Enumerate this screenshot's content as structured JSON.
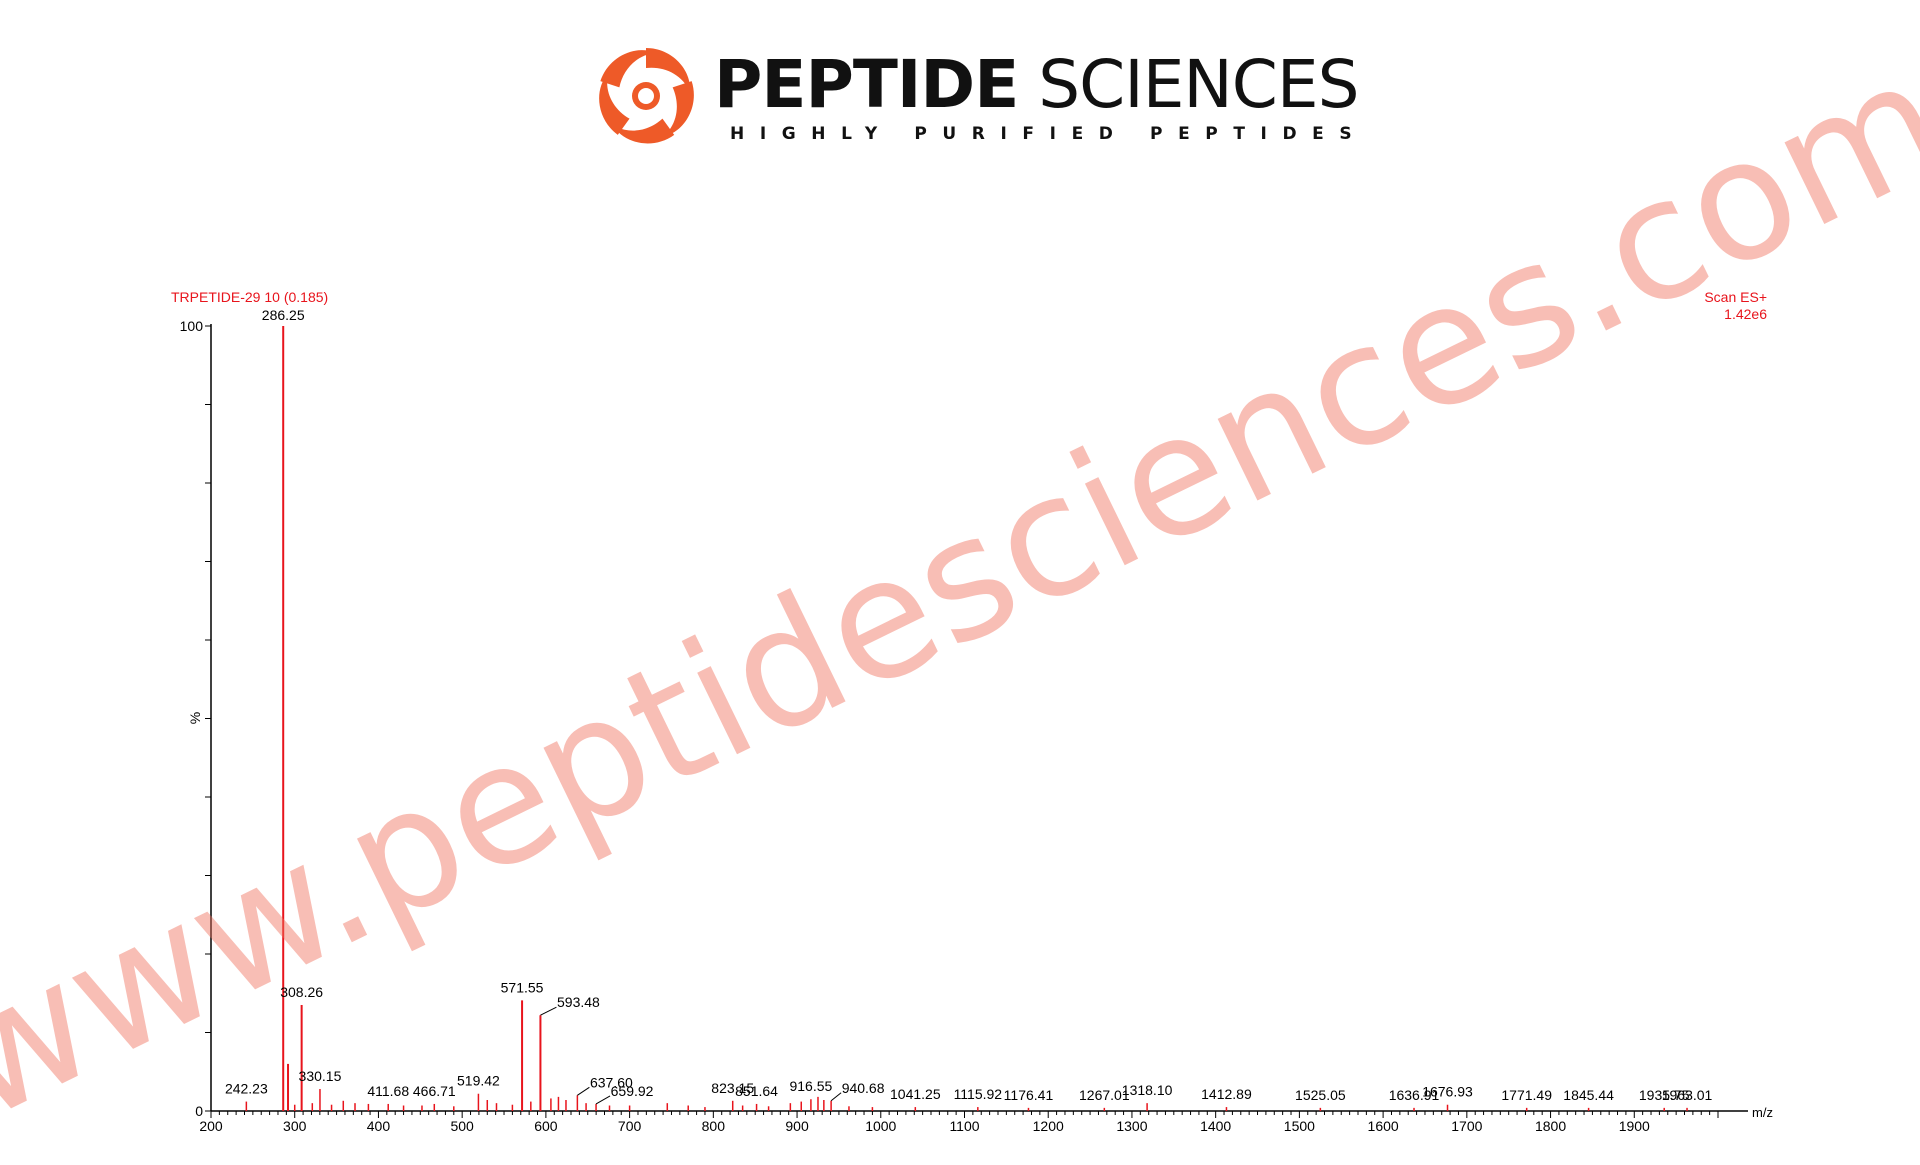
{
  "brand": {
    "name_bold": "PEPTIDE",
    "name_light": "SCIENCES",
    "tagline": "HIGHLY PURIFIED PEPTIDES",
    "logo_color": "#ee5a28"
  },
  "watermark": "www.peptidesciences.com",
  "chart_data": {
    "type": "bar",
    "title": "TRPETIDE-29 10 (0.185)",
    "scan_label": "Scan ES+",
    "intensity_label": "1.42e6",
    "ylabel": "%",
    "xlabel": "m/z",
    "xlim": [
      200,
      2000
    ],
    "ylim": [
      0,
      100
    ],
    "xticks": [
      200,
      300,
      400,
      500,
      600,
      700,
      800,
      900,
      1000,
      1100,
      1200,
      1300,
      1400,
      1500,
      1600,
      1700,
      1800,
      1900
    ],
    "yticks": [
      0,
      100
    ],
    "series_color": "#e8141c",
    "peaks": [
      {
        "mz": 242.23,
        "intensity": 1.2,
        "label": "242.23"
      },
      {
        "mz": 286.25,
        "intensity": 100,
        "label": "286.25"
      },
      {
        "mz": 308.26,
        "intensity": 13.5,
        "label": "308.26"
      },
      {
        "mz": 330.15,
        "intensity": 2.8,
        "label": "330.15"
      },
      {
        "mz": 411.68,
        "intensity": 0.9,
        "label": "411.68"
      },
      {
        "mz": 466.71,
        "intensity": 0.9,
        "label": "466.71"
      },
      {
        "mz": 519.42,
        "intensity": 2.2,
        "label": "519.42"
      },
      {
        "mz": 571.55,
        "intensity": 14.1,
        "label": "571.55"
      },
      {
        "mz": 593.48,
        "intensity": 12.2,
        "label": "593.48"
      },
      {
        "mz": 637.6,
        "intensity": 2.0,
        "label": "637.60"
      },
      {
        "mz": 659.92,
        "intensity": 0.9,
        "label": "659.92"
      },
      {
        "mz": 823.15,
        "intensity": 1.3,
        "label": "823.15"
      },
      {
        "mz": 851.64,
        "intensity": 0.9,
        "label": "851.64"
      },
      {
        "mz": 916.55,
        "intensity": 1.5,
        "label": "916.55"
      },
      {
        "mz": 940.68,
        "intensity": 1.3,
        "label": "940.68"
      },
      {
        "mz": 1041.25,
        "intensity": 0.5,
        "label": "1041.25"
      },
      {
        "mz": 1115.92,
        "intensity": 0.5,
        "label": "1115.92"
      },
      {
        "mz": 1176.41,
        "intensity": 0.4,
        "label": "1176.41"
      },
      {
        "mz": 1267.01,
        "intensity": 0.4,
        "label": "1267.01"
      },
      {
        "mz": 1318.1,
        "intensity": 1.0,
        "label": "1318.10"
      },
      {
        "mz": 1412.89,
        "intensity": 0.5,
        "label": "1412.89"
      },
      {
        "mz": 1525.05,
        "intensity": 0.4,
        "label": "1525.05"
      },
      {
        "mz": 1636.91,
        "intensity": 0.4,
        "label": "1636.91"
      },
      {
        "mz": 1676.93,
        "intensity": 0.8,
        "label": "1676.93"
      },
      {
        "mz": 1771.49,
        "intensity": 0.4,
        "label": "1771.49"
      },
      {
        "mz": 1845.44,
        "intensity": 0.4,
        "label": "1845.44"
      },
      {
        "mz": 1935.75,
        "intensity": 0.4,
        "label": "1935.75"
      },
      {
        "mz": 1963.01,
        "intensity": 0.4,
        "label": "1963.01"
      },
      {
        "mz": 292.0,
        "intensity": 6.0
      },
      {
        "mz": 300.0,
        "intensity": 0.8
      },
      {
        "mz": 321.0,
        "intensity": 1.0
      },
      {
        "mz": 344.0,
        "intensity": 0.8
      },
      {
        "mz": 358.0,
        "intensity": 1.3
      },
      {
        "mz": 372.0,
        "intensity": 1.0
      },
      {
        "mz": 388.0,
        "intensity": 0.9
      },
      {
        "mz": 430.0,
        "intensity": 0.7
      },
      {
        "mz": 452.0,
        "intensity": 0.7
      },
      {
        "mz": 490.0,
        "intensity": 0.6
      },
      {
        "mz": 530.0,
        "intensity": 1.4
      },
      {
        "mz": 541.0,
        "intensity": 1.0
      },
      {
        "mz": 560.0,
        "intensity": 0.8
      },
      {
        "mz": 582.0,
        "intensity": 1.2
      },
      {
        "mz": 606.0,
        "intensity": 1.6
      },
      {
        "mz": 615.0,
        "intensity": 1.8
      },
      {
        "mz": 624.0,
        "intensity": 1.4
      },
      {
        "mz": 648.0,
        "intensity": 1.0
      },
      {
        "mz": 676.0,
        "intensity": 0.7
      },
      {
        "mz": 700.0,
        "intensity": 0.7
      },
      {
        "mz": 745.0,
        "intensity": 1.0
      },
      {
        "mz": 770.0,
        "intensity": 0.7
      },
      {
        "mz": 790.0,
        "intensity": 0.5
      },
      {
        "mz": 835.0,
        "intensity": 0.7
      },
      {
        "mz": 866.0,
        "intensity": 0.6
      },
      {
        "mz": 892.0,
        "intensity": 1.0
      },
      {
        "mz": 905.0,
        "intensity": 1.2
      },
      {
        "mz": 925.0,
        "intensity": 1.8
      },
      {
        "mz": 932.0,
        "intensity": 1.4
      },
      {
        "mz": 962.0,
        "intensity": 0.6
      },
      {
        "mz": 990.0,
        "intensity": 0.5
      }
    ]
  }
}
